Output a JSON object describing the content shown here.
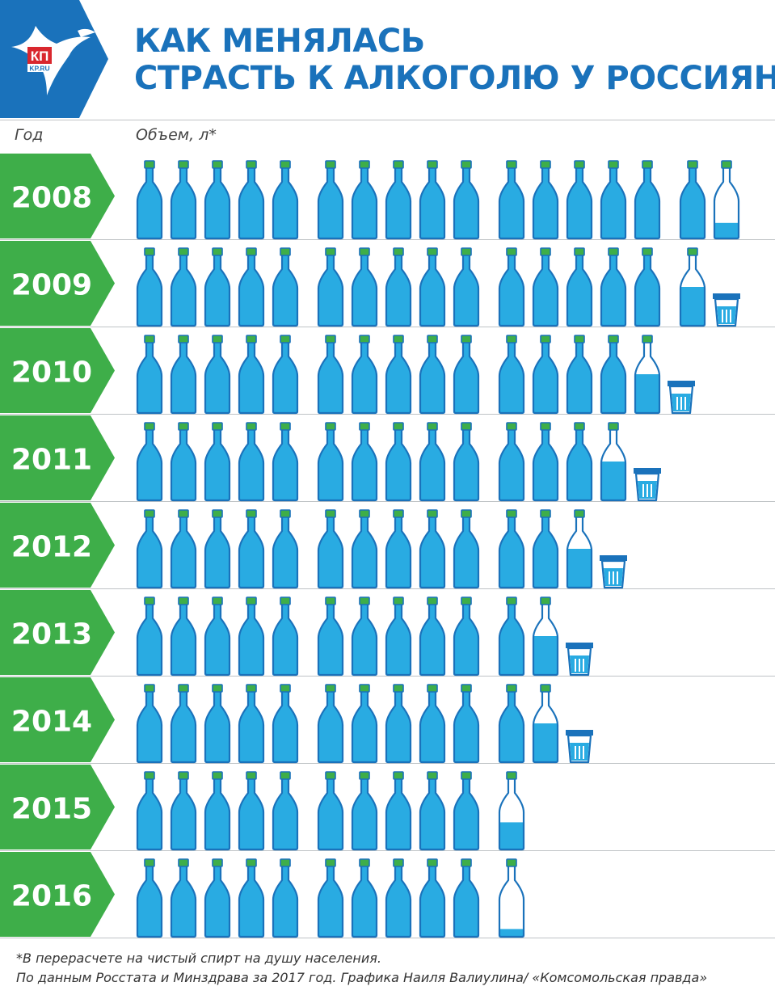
{
  "logo": {
    "icon": "bird-icon",
    "brand_text": "КП",
    "site_text": "KP.RU",
    "color": "#1a72bb"
  },
  "title": {
    "line1": "КАК МЕНЯЛАСЬ",
    "line2": "СТРАСТЬ К АЛКОГОЛЮ У РОССИЯН"
  },
  "headers": {
    "year": "Год",
    "volume": "Объем, л*"
  },
  "footer": {
    "note": "*В перерасчете на чистый спирт на душу населения.",
    "source": "По данным Росстата и Минздрава за 2017 год. Графика Наиля Валиулина/ «Комсомольская правда»"
  },
  "colors": {
    "accent_green": "#3eae49",
    "bottle_fill": "#29abe2",
    "bottle_outline": "#1a72bb",
    "cap": "#3eae49",
    "title_blue": "#1a72bb"
  },
  "chart_data": {
    "type": "pictogram-bar",
    "unit": "л",
    "icons": [
      "bottle-icon",
      "glass-icon"
    ],
    "categories": [
      "2008",
      "2009",
      "2010",
      "2011",
      "2012",
      "2013",
      "2014",
      "2015",
      "2016"
    ],
    "values": [
      16.2,
      15.6,
      14.5,
      13.75,
      12.6,
      11.75,
      11.5,
      10.35,
      10.1
    ]
  }
}
